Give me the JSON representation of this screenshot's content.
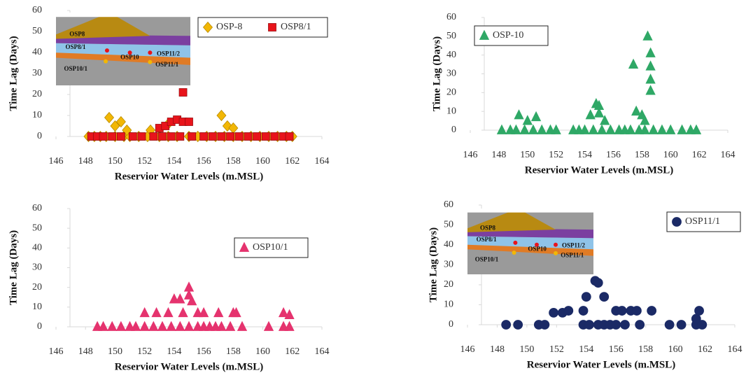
{
  "chart_data": [
    {
      "type": "scatter",
      "y_label": "Time Lag  (Days)",
      "x_label": "Reservior Water Levels (m.MSL)",
      "xlim": [
        146,
        164
      ],
      "xticks": [
        146,
        148,
        150,
        152,
        154,
        156,
        158,
        160,
        162,
        164
      ],
      "ylim": [
        0,
        60
      ],
      "yticks": [
        0,
        10,
        20,
        30,
        40,
        50,
        60
      ],
      "legend": "top-right",
      "inset_labels": [
        "OSP8",
        "OSP8/1",
        "OSP10",
        "OSP11/2",
        "OSP10/1",
        "OSP11/1"
      ],
      "series": [
        {
          "name": "OSP-8",
          "color": "#f2b705",
          "marker": "diamond",
          "x": [
            148.2,
            148.6,
            149,
            149.4,
            150,
            150.6,
            151,
            151.6,
            152.2,
            153,
            153.6,
            154.2,
            155,
            155.6,
            156.2,
            156.8,
            157.4,
            158,
            158.6,
            159.2,
            159.8,
            160.4,
            161,
            161.6,
            162,
            149.6,
            150,
            150.4,
            150.8,
            152.4,
            153.6,
            157.2,
            157.6,
            158
          ],
          "values": [
            0,
            0,
            0,
            0,
            0,
            0,
            0,
            0,
            0,
            0,
            0,
            0,
            0,
            0,
            0,
            0,
            0,
            0,
            0,
            0,
            0,
            0,
            0,
            0,
            0,
            9,
            5,
            7,
            3,
            3,
            6,
            10,
            5,
            4
          ]
        },
        {
          "name": "OSP8/1",
          "color": "#e8141b",
          "marker": "square",
          "x": [
            148.4,
            148.8,
            149.2,
            149.8,
            150.4,
            151.2,
            151.8,
            152.6,
            153.2,
            153.8,
            154.4,
            155.2,
            156,
            156.6,
            157.2,
            157.8,
            158.4,
            159,
            159.6,
            160.2,
            160.8,
            161.4,
            161.8,
            153,
            153.4,
            153.8,
            154.2,
            154.6,
            155,
            154.6
          ],
          "values": [
            0,
            0,
            0,
            0,
            0,
            0,
            0,
            0,
            0,
            0,
            0,
            0,
            0,
            0,
            0,
            0,
            0,
            0,
            0,
            0,
            0,
            0,
            0,
            4,
            5,
            7,
            8,
            7,
            7,
            21
          ]
        }
      ]
    },
    {
      "type": "scatter",
      "y_label": "Time Lag  (Days)",
      "x_label": "Reservior Water Levels (m.MSL)",
      "xlim": [
        146,
        164
      ],
      "xticks": [
        146,
        148,
        150,
        152,
        154,
        156,
        158,
        160,
        162,
        164
      ],
      "ylim": [
        0,
        60
      ],
      "yticks": [
        0,
        10,
        20,
        30,
        40,
        50,
        60
      ],
      "legend": "top-left",
      "series": [
        {
          "name": "OSP-10",
          "color": "#2fa866",
          "marker": "triangle",
          "x": [
            148.2,
            148.8,
            149.2,
            149.8,
            150.4,
            151,
            151.6,
            152,
            153.2,
            153.6,
            154,
            154.6,
            155.2,
            155.8,
            156.4,
            156.8,
            157.2,
            157.8,
            158.2,
            158.8,
            159.4,
            160,
            160.8,
            161.4,
            161.8,
            149.4,
            150,
            150.6,
            154.4,
            154.8,
            155,
            155,
            155.4,
            157.4,
            157.6,
            158,
            158.4,
            158.6,
            158.6,
            158.6,
            158.6,
            158.2
          ],
          "values": [
            0,
            0,
            0,
            0,
            0,
            0,
            0,
            0,
            0,
            0,
            0,
            0,
            0,
            0,
            0,
            0,
            0,
            0,
            0,
            0,
            0,
            0,
            0,
            0,
            0,
            8,
            5,
            7,
            8,
            14,
            13,
            9,
            5,
            35,
            10,
            8,
            50,
            41,
            34,
            27,
            21,
            5
          ]
        }
      ]
    },
    {
      "type": "scatter",
      "y_label": "Time Lag  (Days)",
      "x_label": "Reservior Water Levels (m.MSL)",
      "xlim": [
        146,
        164
      ],
      "xticks": [
        146,
        148,
        150,
        152,
        154,
        156,
        158,
        160,
        162,
        164
      ],
      "ylim": [
        0,
        60
      ],
      "yticks": [
        0,
        10,
        20,
        30,
        40,
        50,
        60
      ],
      "legend": "middle-right",
      "series": [
        {
          "name": "OSP10/1",
          "color": "#e5336e",
          "marker": "triangle",
          "x": [
            148.8,
            149.2,
            149.8,
            150.4,
            151,
            151.4,
            152,
            152.6,
            153.2,
            153.8,
            154.4,
            155,
            155.6,
            156,
            156.4,
            156.8,
            157.2,
            157.8,
            158.6,
            160.4,
            161.4,
            161.8,
            152,
            152.8,
            153.6,
            154,
            154.4,
            154.6,
            155,
            155,
            155.2,
            155.6,
            156,
            157,
            158,
            158.2,
            161.4,
            161.8
          ],
          "values": [
            0,
            0,
            0,
            0,
            0,
            0,
            0,
            0,
            0,
            0,
            0,
            0,
            0,
            0,
            0,
            0,
            0,
            0,
            0,
            0,
            0,
            0,
            7,
            7,
            7,
            14,
            14,
            7,
            20,
            16,
            13,
            7,
            7,
            7,
            7,
            7,
            7,
            6
          ]
        }
      ]
    },
    {
      "type": "scatter",
      "y_label": "Time Lag  (Days)",
      "x_label": "Reservior Water Levels (m.MSL)",
      "xlim": [
        146,
        164
      ],
      "xticks": [
        146,
        148,
        150,
        152,
        154,
        156,
        158,
        160,
        162,
        164
      ],
      "ylim": [
        0,
        60
      ],
      "yticks": [
        0,
        10,
        20,
        30,
        40,
        50,
        60
      ],
      "legend": "top-right",
      "inset_labels": [
        "OSP8",
        "OSP8/1",
        "OSP10",
        "OSP11/2",
        "OSP10/1",
        "OSP11/1"
      ],
      "series": [
        {
          "name": "OSP11/1",
          "color": "#1b2a66",
          "marker": "circle",
          "x": [
            148.6,
            149.4,
            150.8,
            151.2,
            153.8,
            154.2,
            154.8,
            155.2,
            155.6,
            156,
            156.6,
            157.6,
            159.6,
            160.4,
            161.4,
            161.8,
            151.8,
            152.4,
            152.8,
            153.8,
            154,
            154.6,
            154.8,
            155.2,
            156,
            156.4,
            157,
            157.4,
            158.4,
            161.4,
            161.6
          ],
          "values": [
            0,
            0,
            0,
            0,
            0,
            0,
            0,
            0,
            0,
            0,
            0,
            0,
            0,
            0,
            0,
            0,
            6,
            6,
            7,
            7,
            14,
            22,
            21,
            14,
            7,
            7,
            7,
            7,
            7,
            3,
            7
          ]
        }
      ]
    }
  ]
}
